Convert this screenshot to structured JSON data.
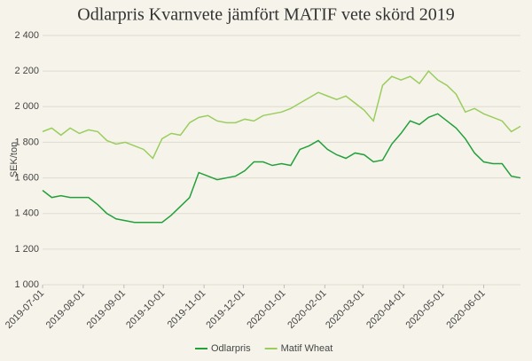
{
  "chart_data": {
    "type": "line",
    "title": "Odlarpris Kvarnvete jämfört MATIF vete skörd  2019",
    "y_label": "SEK/ton",
    "x": [
      "2019-07-01",
      "2019-07-08",
      "2019-07-15",
      "2019-07-22",
      "2019-07-29",
      "2019-08-05",
      "2019-08-12",
      "2019-08-19",
      "2019-08-26",
      "2019-09-02",
      "2019-09-09",
      "2019-09-16",
      "2019-09-23",
      "2019-09-30",
      "2019-10-07",
      "2019-10-14",
      "2019-10-21",
      "2019-10-28",
      "2019-11-04",
      "2019-11-11",
      "2019-11-18",
      "2019-11-25",
      "2019-12-02",
      "2019-12-09",
      "2019-12-16",
      "2019-12-23",
      "2019-12-30",
      "2020-01-06",
      "2020-01-13",
      "2020-01-20",
      "2020-01-27",
      "2020-02-03",
      "2020-02-10",
      "2020-02-17",
      "2020-02-24",
      "2020-03-02",
      "2020-03-09",
      "2020-03-16",
      "2020-03-23",
      "2020-03-30",
      "2020-04-06",
      "2020-04-13",
      "2020-04-20",
      "2020-04-27",
      "2020-05-04",
      "2020-05-11",
      "2020-05-18",
      "2020-05-25",
      "2020-06-01",
      "2020-06-08",
      "2020-06-15",
      "2020-06-22",
      "2020-06-29"
    ],
    "series": [
      {
        "name": "Odlarpris",
        "color": "#23a03c",
        "values": [
          1530,
          1490,
          1500,
          1490,
          1490,
          1490,
          1450,
          1400,
          1370,
          1360,
          1350,
          1350,
          1350,
          1350,
          1390,
          1440,
          1490,
          1630,
          1610,
          1590,
          1600,
          1610,
          1640,
          1690,
          1690,
          1670,
          1680,
          1670,
          1760,
          1780,
          1810,
          1760,
          1730,
          1710,
          1740,
          1730,
          1690,
          1700,
          1790,
          1850,
          1920,
          1900,
          1940,
          1960,
          1920,
          1880,
          1820,
          1740,
          1690,
          1680,
          1680,
          1610,
          1600
        ]
      },
      {
        "name": "Matif Wheat",
        "color": "#9acd5e",
        "values": [
          1860,
          1880,
          1840,
          1880,
          1850,
          1870,
          1860,
          1810,
          1790,
          1800,
          1780,
          1760,
          1710,
          1820,
          1850,
          1840,
          1910,
          1940,
          1950,
          1920,
          1910,
          1910,
          1930,
          1920,
          1950,
          1960,
          1970,
          1990,
          2020,
          2050,
          2080,
          2060,
          2040,
          2060,
          2020,
          1980,
          1920,
          2120,
          2170,
          2150,
          2170,
          2130,
          2200,
          2150,
          2120,
          2070,
          1970,
          1990,
          1960,
          1940,
          1920,
          1860,
          1890
        ]
      }
    ],
    "xlim": [
      "2019-07-01",
      "2020-06-29"
    ],
    "xticks": [
      "2019-07-01",
      "2019-08-01",
      "2019-09-01",
      "2019-10-01",
      "2019-11-01",
      "2019-12-01",
      "2020-01-01",
      "2020-02-01",
      "2020-03-01",
      "2020-04-01",
      "2020-05-01",
      "2020-06-01"
    ],
    "ylim": [
      1000,
      2400
    ],
    "yticks": [
      {
        "value": 1000,
        "label": "1 000"
      },
      {
        "value": 1200,
        "label": "1 200"
      },
      {
        "value": 1400,
        "label": "1 400"
      },
      {
        "value": 1600,
        "label": "1 600"
      },
      {
        "value": 1800,
        "label": "1 800"
      },
      {
        "value": 2000,
        "label": "2 000"
      },
      {
        "value": 2200,
        "label": "2 200"
      },
      {
        "value": 2400,
        "label": "2 400"
      }
    ],
    "grid": true,
    "legend": "bottom"
  }
}
